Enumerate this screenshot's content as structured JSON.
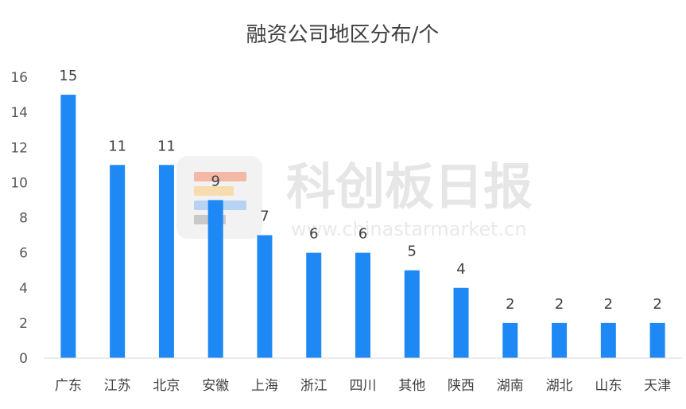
{
  "chart_data": {
    "type": "bar",
    "title": "融资公司地区分布/个",
    "categories": [
      "广东",
      "江苏",
      "北京",
      "安徽",
      "上海",
      "浙江",
      "四川",
      "其他",
      "陕西",
      "湖南",
      "湖北",
      "山东",
      "天津"
    ],
    "values": [
      15,
      11,
      11,
      9,
      7,
      6,
      6,
      5,
      4,
      2,
      2,
      2,
      2
    ],
    "ylim": [
      0,
      16
    ],
    "yticks": [
      0,
      2,
      4,
      6,
      8,
      10,
      12,
      14,
      16
    ],
    "grid": false,
    "legend": "none",
    "bar_color": "#1E88F5",
    "data_labels": true
  },
  "watermark": {
    "text": "科创板日报",
    "url": "www.chinastarmarket.cn",
    "logo_colors": [
      "#f4b9a6",
      "#f7dcb0",
      "#b7d3f3",
      "#c9c9c9"
    ]
  }
}
